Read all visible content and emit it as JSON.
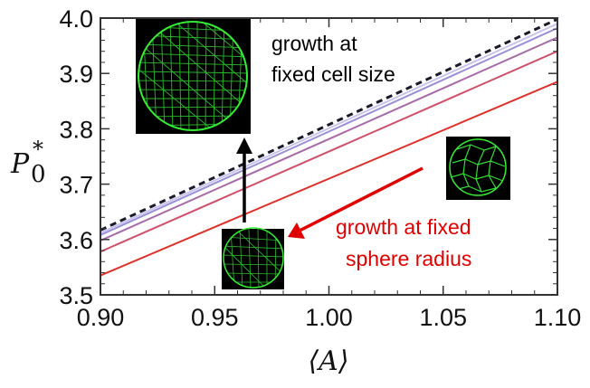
{
  "chart_data": {
    "type": "line",
    "xlabel": "⟨A⟩",
    "ylabel_main": "P",
    "ylabel_sub": "0",
    "ylabel_sup": "*",
    "xlim": [
      0.9,
      1.1
    ],
    "ylim": [
      3.5,
      4.0
    ],
    "xticks": [
      0.9,
      0.95,
      1.0,
      1.05,
      1.1
    ],
    "xtick_labels": [
      "0.90",
      "0.95",
      "1.00",
      "1.05",
      "1.10"
    ],
    "yticks": [
      3.5,
      3.6,
      3.7,
      3.8,
      3.9,
      4.0
    ],
    "ytick_labels": [
      "3.5",
      "3.6",
      "3.7",
      "3.8",
      "3.9",
      "4.0"
    ],
    "grid": false,
    "series": [
      {
        "x": [
          0.9,
          1.1
        ],
        "values": [
          3.535,
          3.885
        ],
        "color": "#e0302a",
        "dashed": false
      },
      {
        "x": [
          0.9,
          1.1
        ],
        "values": [
          3.578,
          3.94
        ],
        "color": "#d0506a",
        "dashed": false
      },
      {
        "x": [
          0.9,
          1.1
        ],
        "values": [
          3.598,
          3.965
        ],
        "color": "#a86aa8",
        "dashed": false
      },
      {
        "x": [
          0.9,
          1.1
        ],
        "values": [
          3.608,
          3.982
        ],
        "color": "#9a90d8",
        "dashed": false
      },
      {
        "x": [
          0.9,
          1.1
        ],
        "values": [
          3.612,
          3.99
        ],
        "color": "#c8c4ee",
        "dashed": false
      },
      {
        "x": [
          0.9,
          1.1
        ],
        "values": [
          3.617,
          3.998
        ],
        "color": "#1a1a2a",
        "dashed": true
      }
    ],
    "annotations": [
      {
        "lines": [
          "growth at",
          "fixed cell size"
        ],
        "color": "#000000"
      },
      {
        "lines": [
          "growth at fixed",
          "sphere radius"
        ],
        "color": "#e00000"
      }
    ]
  },
  "colors": {
    "black_arrow": "#000000",
    "red_arrow": "#e00000",
    "mesh": "#33dd33",
    "inset_bg": "#000000"
  }
}
